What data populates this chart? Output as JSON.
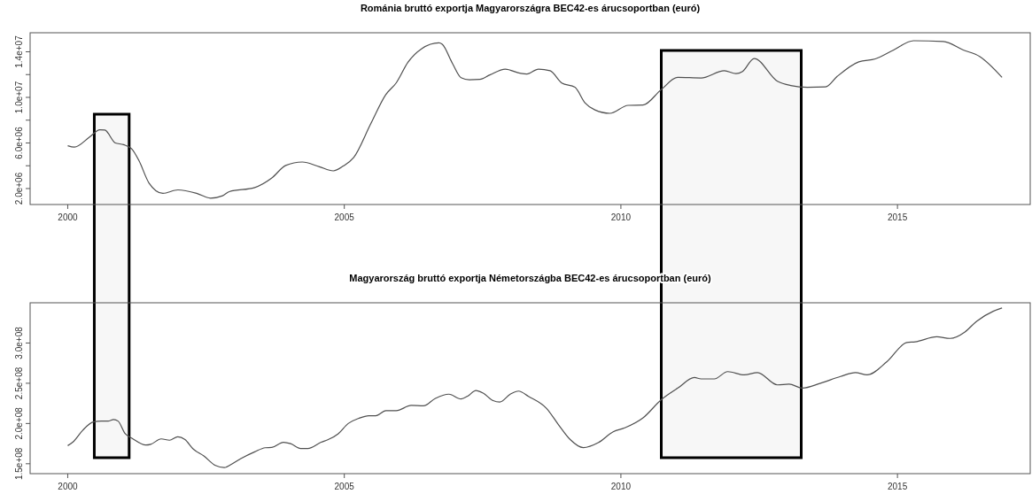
{
  "chart_data": [
    {
      "type": "line",
      "title": "Románia bruttó exportja Magyarországra BEC42-es árucsoportban (euró)",
      "xlim": [
        1999.32,
        2017.4
      ],
      "xticks": [
        2000,
        2005,
        2010,
        2015
      ],
      "ylim": [
        600000,
        15670000
      ],
      "yticks": [
        {
          "value": 2000000,
          "label": "2.0e+06"
        },
        {
          "value": 4000000,
          "label": null
        },
        {
          "value": 6000000,
          "label": "6.0e+06"
        },
        {
          "value": 8000000,
          "label": null
        },
        {
          "value": 10000000,
          "label": "1.0e+07"
        },
        {
          "value": 12000000,
          "label": null
        },
        {
          "value": 14000000,
          "label": "1.4e+07"
        }
      ],
      "grid": false,
      "marker": "none",
      "line_style": "solid",
      "bands": [
        {
          "axis": "x",
          "from": 2000.48,
          "to": 2001.11,
          "color": "#f7f7f7"
        },
        {
          "axis": "x",
          "from": 2010.73,
          "to": 2013.26,
          "color": "#f7f7f7"
        }
      ],
      "series": [
        {
          "color": "#505050",
          "x": [
            2000,
            2000.12,
            2000.39,
            2000.58,
            2000.67,
            2000.86,
            2001.01,
            2001.16,
            2001.29,
            2001.47,
            2001.72,
            2001.99,
            2002.33,
            2002.58,
            2002.8,
            2002.92,
            2003.38,
            2003.69,
            2003.94,
            2004.24,
            2004.55,
            2004.8,
            2004.98,
            2005.17,
            2005.48,
            2005.75,
            2005.94,
            2006.15,
            2006.4,
            2006.71,
            2006.77,
            2006.96,
            2007.11,
            2007.26,
            2007.45,
            2007.63,
            2007.91,
            2008.19,
            2008.3,
            2008.51,
            2008.72,
            2008.93,
            2009.17,
            2009.35,
            2009.53,
            2009.8,
            2010.13,
            2010.4,
            2010.73,
            2011.03,
            2011.45,
            2011.87,
            2012.08,
            2012.2,
            2012.41,
            2012.83,
            2013.07,
            2013.37,
            2013.7,
            2013.91,
            2014.3,
            2014.6,
            2014.93,
            2015.29,
            2015.83,
            2016.19,
            2016.49,
            2016.89
          ],
          "values": [
            5760000,
            5640000,
            6500000,
            7160000,
            7130000,
            6000000,
            5850000,
            5460000,
            4420000,
            2480000,
            1580000,
            1880000,
            1580000,
            1160000,
            1370000,
            1730000,
            2090000,
            2930000,
            4030000,
            4330000,
            3910000,
            3550000,
            3970000,
            4720000,
            7700000,
            10240000,
            11280000,
            13070000,
            14270000,
            14780000,
            14660000,
            12930000,
            11730000,
            11550000,
            11580000,
            11970000,
            12480000,
            12100000,
            12050000,
            12480000,
            12340000,
            11270000,
            10890000,
            9530000,
            8900000,
            8600000,
            9300000,
            9330000,
            10690000,
            11760000,
            11700000,
            12340000,
            12080000,
            12280000,
            13410000,
            11410000,
            11040000,
            10890000,
            10920000,
            11840000,
            13120000,
            13380000,
            14160000,
            14970000,
            14910000,
            14160000,
            13580000,
            11760000
          ]
        }
      ]
    },
    {
      "type": "line",
      "title": "Magyarország bruttó exportja Németországba BEC42-es árucsoportban (euró)",
      "xlim": [
        1999.32,
        2017.4
      ],
      "xticks": [
        2000,
        2005,
        2010,
        2015
      ],
      "ylim": [
        137700000,
        350000000
      ],
      "yticks": [
        {
          "value": 150000000,
          "label": "1.5e+08"
        },
        {
          "value": 200000000,
          "label": "2.0e+08"
        },
        {
          "value": 250000000,
          "label": "2.5e+08"
        },
        {
          "value": 300000000,
          "label": "3.0e+08"
        }
      ],
      "grid": false,
      "marker": "none",
      "line_style": "solid",
      "series": [
        {
          "color": "#505050",
          "x": [
            2000,
            2000.09,
            2000.27,
            2000.46,
            2000.61,
            2000.73,
            2000.83,
            2000.91,
            2001.04,
            2001.16,
            2001.41,
            2001.5,
            2001.69,
            2001.84,
            2001.99,
            2002.12,
            2002.27,
            2002.46,
            2002.67,
            2002.83,
            2002.95,
            2003.13,
            2003.38,
            2003.57,
            2003.69,
            2003.9,
            2004.03,
            2004.21,
            2004.34,
            2004.58,
            2004.7,
            2004.89,
            2005.07,
            2005.26,
            2005.44,
            2005.57,
            2005.75,
            2005.94,
            2006.21,
            2006.43,
            2006.64,
            2006.89,
            2007.11,
            2007.23,
            2007.38,
            2007.51,
            2007.69,
            2007.81,
            2008,
            2008.15,
            2008.33,
            2008.66,
            2008.87,
            2009.08,
            2009.32,
            2009.59,
            2009.86,
            2010.07,
            2010.4,
            2010.73,
            2011.03,
            2011.33,
            2011.45,
            2011.69,
            2011.93,
            2012.23,
            2012.47,
            2012.83,
            2013.04,
            2013.28,
            2013.61,
            2013.97,
            2014.24,
            2014.45,
            2014.81,
            2015.17,
            2015.32,
            2015.71,
            2015.95,
            2016.22,
            2016.43,
            2016.73,
            2016.89
          ],
          "values": [
            172500000,
            176700000,
            191500000,
            202000000,
            203000000,
            203000000,
            205000000,
            203000000,
            187300000,
            181800000,
            173300000,
            174200000,
            180900000,
            179200000,
            183500000,
            180000000,
            168200000,
            159700000,
            147900000,
            145300000,
            149000000,
            156400000,
            164800000,
            169900000,
            170300000,
            176700000,
            175000000,
            169000000,
            169000000,
            176700000,
            179700000,
            187300000,
            200000000,
            206400000,
            209700000,
            209700000,
            216000000,
            216000000,
            222500000,
            222000000,
            231000000,
            236400000,
            230500000,
            234000000,
            241000000,
            237700000,
            228400000,
            226700000,
            236400000,
            240300000,
            233700000,
            218500000,
            198700000,
            180300000,
            170000000,
            176100000,
            189700000,
            194600000,
            207000000,
            229600000,
            244000000,
            257100000,
            255400000,
            255400000,
            264500000,
            260400000,
            263300000,
            248000000,
            248900000,
            244000000,
            250100000,
            258400000,
            263300000,
            260400000,
            276800000,
            300700000,
            301500000,
            307700000,
            305700000,
            313800000,
            327000000,
            339400000,
            343500000
          ]
        }
      ]
    }
  ]
}
